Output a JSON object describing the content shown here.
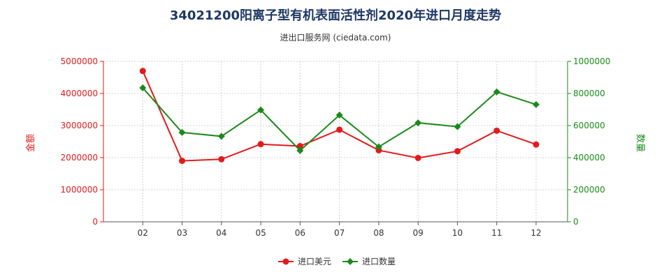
{
  "chart_data": {
    "type": "line",
    "title": "34021200阳离子型有机表面活性剂2020年进口月度走势",
    "subtitle": "进出口服务网 (ciedata.com)",
    "categories": [
      "02",
      "03",
      "04",
      "05",
      "06",
      "07",
      "08",
      "09",
      "10",
      "11",
      "12"
    ],
    "left_axis": {
      "label": "金额",
      "range": [
        0,
        5000000
      ],
      "ticks": [
        "0",
        "1000000",
        "2000000",
        "3000000",
        "4000000",
        "5000000"
      ],
      "color": "#e31a1c"
    },
    "right_axis": {
      "label": "数量",
      "range": [
        0,
        1000000
      ],
      "ticks": [
        "0",
        "200000",
        "400000",
        "600000",
        "800000",
        "1000000"
      ],
      "color": "#1a8a1a"
    },
    "series": [
      {
        "name": "进口美元",
        "axis": "left",
        "color": "#e31a1c",
        "marker": "circle",
        "values": [
          4700000,
          1900000,
          1950000,
          2420000,
          2360000,
          2870000,
          2230000,
          1990000,
          2200000,
          2840000,
          2410000
        ]
      },
      {
        "name": "进口数量",
        "axis": "right",
        "color": "#1a8a1a",
        "marker": "diamond",
        "values": [
          835000,
          557000,
          533000,
          697000,
          444000,
          665000,
          467000,
          617000,
          593000,
          810000,
          731000
        ]
      }
    ],
    "grid": true,
    "legend_position": "bottom-center"
  }
}
